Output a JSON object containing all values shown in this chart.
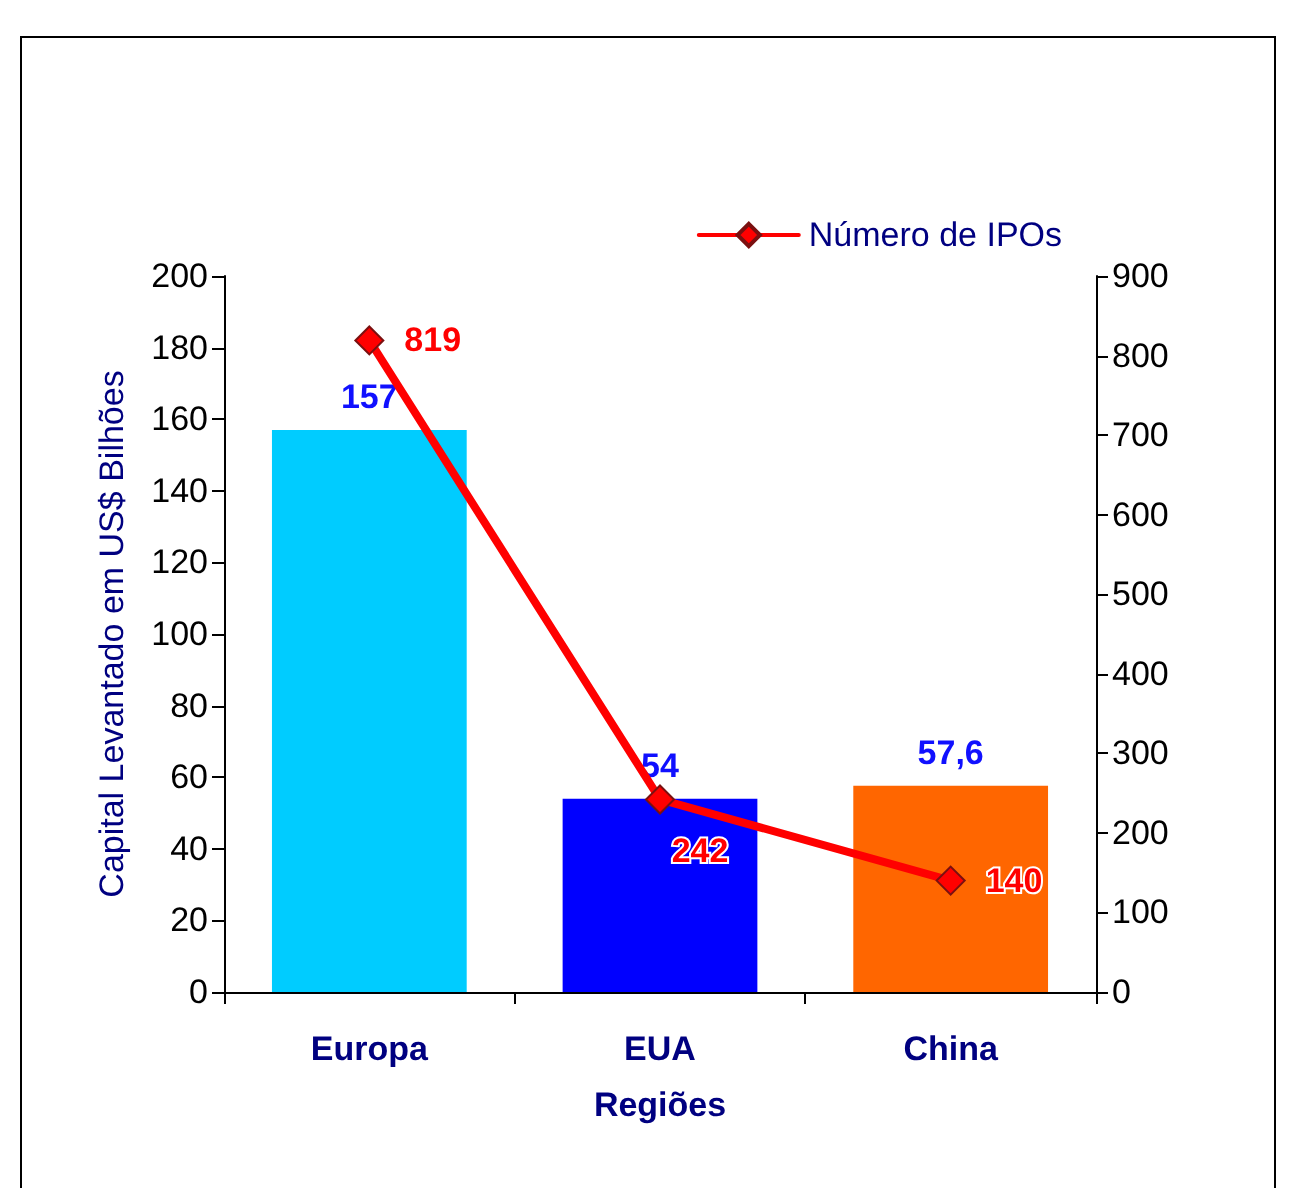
{
  "chart_data": {
    "type": "bar",
    "categories": [
      "Europa",
      "EUA",
      "China"
    ],
    "xlabel": "Regiões",
    "ylabel": "Capital Levantado em US$ Bilhões",
    "series": [
      {
        "colors": [
          "#00ccff",
          "#0000ff",
          "#ff6600"
        ],
        "values": [
          157,
          54,
          57.6
        ],
        "value_labels": [
          "157",
          "54",
          "57,6"
        ]
      },
      {
        "type": "line",
        "name": "Número de IPOs",
        "axis": "y2",
        "color": "#ff0000",
        "values": [
          819,
          242,
          140
        ],
        "value_labels": [
          "819",
          "242",
          "140"
        ],
        "marker": "diamond"
      }
    ],
    "ylim": [
      0,
      200
    ],
    "yticks": [
      0,
      20,
      40,
      60,
      80,
      100,
      120,
      140,
      160,
      180,
      200
    ],
    "y2lim": [
      0,
      900
    ],
    "y2ticks": [
      0,
      100,
      200,
      300,
      400,
      500,
      600,
      700,
      800,
      900
    ],
    "grid": false,
    "legend": "top right"
  }
}
